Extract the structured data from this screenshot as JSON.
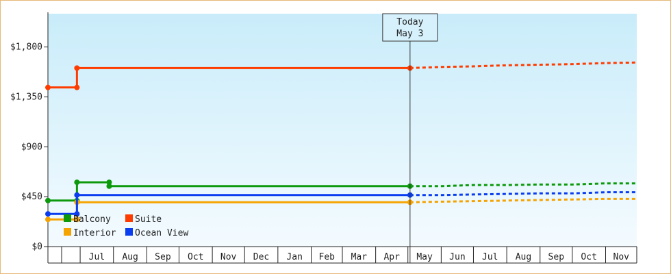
{
  "chart_data": {
    "type": "line",
    "title": "",
    "xlabel": "",
    "ylabel": "",
    "ylim": [
      0,
      2100
    ],
    "y_ticks": [
      0,
      450,
      900,
      1350,
      1800
    ],
    "y_tick_labels": [
      "$0",
      "$450",
      "$900",
      "$1,350",
      "$1,800"
    ],
    "x_range": [
      "2023-06-01",
      "2024-11-30"
    ],
    "x_ticks": [
      "Jul",
      "Aug",
      "Sep",
      "Oct",
      "Nov",
      "Dec",
      "Jan",
      "Feb",
      "Mar",
      "Apr",
      "May",
      "Jun",
      "Jul",
      "Aug",
      "Sep",
      "Oct",
      "Nov"
    ],
    "x_tick_dates": [
      "2023-07-01",
      "2023-08-01",
      "2023-09-01",
      "2023-10-01",
      "2023-11-01",
      "2023-12-01",
      "2024-01-01",
      "2024-02-01",
      "2024-03-01",
      "2024-04-01",
      "2024-05-01",
      "2024-06-01",
      "2024-07-01",
      "2024-08-01",
      "2024-09-01",
      "2024-10-01",
      "2024-11-01"
    ],
    "grid": false,
    "legend_position": "bottom-left",
    "today_marker": {
      "date": "2024-05-03",
      "label_line1": "Today",
      "label_line2": "May 3"
    },
    "series": [
      {
        "name": "Balcony",
        "color": "#0c9a0c",
        "points": [
          [
            "2023-06-01",
            415
          ],
          [
            "2023-06-28",
            415
          ],
          [
            "2023-06-28",
            580
          ],
          [
            "2023-07-28",
            580
          ],
          [
            "2023-07-28",
            545
          ],
          [
            "2024-05-03",
            545
          ]
        ],
        "projection": [
          [
            "2024-05-03",
            545
          ],
          [
            "2024-06-01",
            545
          ],
          [
            "2024-07-01",
            555
          ],
          [
            "2024-08-01",
            555
          ],
          [
            "2024-09-01",
            560
          ],
          [
            "2024-10-01",
            560
          ],
          [
            "2024-11-01",
            570
          ],
          [
            "2024-11-30",
            570
          ]
        ]
      },
      {
        "name": "Suite",
        "color": "#ff3c00",
        "points": [
          [
            "2023-06-01",
            1435
          ],
          [
            "2023-06-28",
            1435
          ],
          [
            "2023-06-28",
            1610
          ],
          [
            "2024-05-03",
            1610
          ]
        ],
        "projection": [
          [
            "2024-05-03",
            1610
          ],
          [
            "2024-06-01",
            1620
          ],
          [
            "2024-07-01",
            1625
          ],
          [
            "2024-08-01",
            1635
          ],
          [
            "2024-09-01",
            1640
          ],
          [
            "2024-10-01",
            1645
          ],
          [
            "2024-11-01",
            1655
          ],
          [
            "2024-11-30",
            1660
          ]
        ]
      },
      {
        "name": "Interior",
        "color": "#f5a300",
        "points": [
          [
            "2023-06-01",
            245
          ],
          [
            "2023-06-28",
            245
          ],
          [
            "2023-06-28",
            400
          ],
          [
            "2024-05-03",
            400
          ]
        ],
        "projection": [
          [
            "2024-05-03",
            400
          ],
          [
            "2024-06-01",
            405
          ],
          [
            "2024-07-01",
            410
          ],
          [
            "2024-08-01",
            415
          ],
          [
            "2024-09-01",
            420
          ],
          [
            "2024-10-01",
            425
          ],
          [
            "2024-11-01",
            430
          ],
          [
            "2024-11-30",
            430
          ]
        ]
      },
      {
        "name": "Ocean View",
        "color": "#0a3cf0",
        "points": [
          [
            "2023-06-01",
            295
          ],
          [
            "2023-06-28",
            295
          ],
          [
            "2023-06-28",
            465
          ],
          [
            "2024-05-03",
            465
          ]
        ],
        "projection": [
          [
            "2024-05-03",
            465
          ],
          [
            "2024-06-01",
            465
          ],
          [
            "2024-07-01",
            470
          ],
          [
            "2024-08-01",
            475
          ],
          [
            "2024-09-01",
            480
          ],
          [
            "2024-10-01",
            480
          ],
          [
            "2024-11-01",
            490
          ],
          [
            "2024-11-30",
            490
          ]
        ]
      }
    ],
    "legend": [
      {
        "name": "Balcony",
        "color": "#0c9a0c"
      },
      {
        "name": "Suite",
        "color": "#ff3c00"
      },
      {
        "name": "Interior",
        "color": "#f5a300"
      },
      {
        "name": "Ocean View",
        "color": "#0a3cf0"
      }
    ]
  },
  "colors": {
    "plot_bg_top": "#c9ecfa",
    "plot_bg_bottom": "#f4fbff",
    "frame": "#e8b878",
    "axis": "#222222"
  }
}
